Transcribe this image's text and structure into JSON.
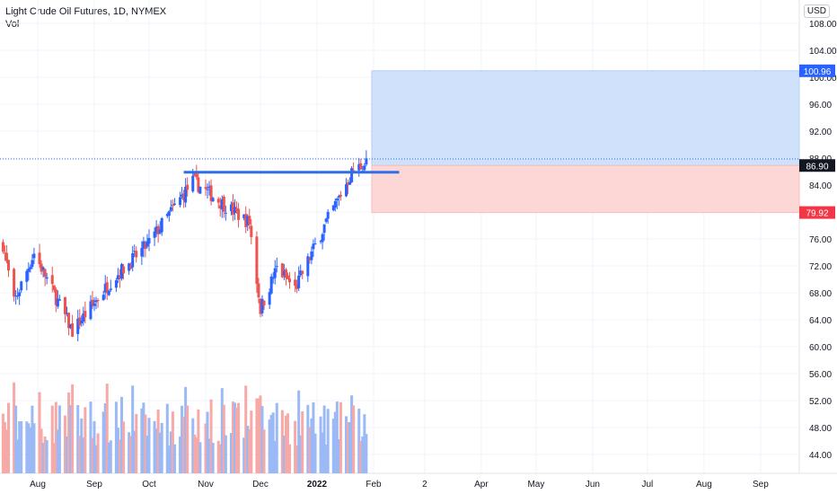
{
  "legend": {
    "title": "Light Crude Oil Futures, 1D, NYMEX",
    "volume_label": "Vol"
  },
  "currency_label": "USD",
  "colors": {
    "up": "#26a69a",
    "up_candle": "#2962ff",
    "down": "#ef5350",
    "vol_up": "#9ab9f5",
    "vol_down": "#f7a9a7",
    "target_zone": "#d0e2fb",
    "stop_zone": "#fdd7d6",
    "level_line": "#2e6ee6",
    "target_tag": "#2962ff",
    "stop_tag": "#f23645",
    "entry_tag": "#131722",
    "grid": "#f0f3fa"
  },
  "chart_data": {
    "type": "candlestick",
    "title": "Light Crude Oil Futures, 1D, NYMEX",
    "ylabel": "USD",
    "ylim": [
      40,
      110
    ],
    "y_ticks": [
      "44.00",
      "48.00",
      "52.00",
      "56.00",
      "60.00",
      "64.00",
      "68.00",
      "72.00",
      "76.00",
      "80.00",
      "84.00",
      "88.00",
      "92.00",
      "96.00",
      "100.00",
      "104.00",
      "108.00"
    ],
    "x_ticks": [
      "Aug",
      "Sep",
      "Oct",
      "Nov",
      "Dec",
      "2022",
      "Feb",
      "2",
      "Apr",
      "May",
      "Jun",
      "Jul",
      "Aug",
      "Sep"
    ],
    "price_path": [
      {
        "date": "2021-07-13",
        "price": 75.2
      },
      {
        "date": "2021-07-19",
        "price": 66.5
      },
      {
        "date": "2021-07-30",
        "price": 73.9
      },
      {
        "date": "2021-08-20",
        "price": 62.3
      },
      {
        "date": "2021-09-10",
        "price": 69.7
      },
      {
        "date": "2021-09-30",
        "price": 75.1
      },
      {
        "date": "2021-10-25",
        "price": 84.6
      },
      {
        "date": "2021-11-10",
        "price": 81.3
      },
      {
        "date": "2021-11-25",
        "price": 78.4
      },
      {
        "date": "2021-12-01",
        "price": 65.6
      },
      {
        "date": "2021-12-10",
        "price": 71.7
      },
      {
        "date": "2021-12-20",
        "price": 68.6
      },
      {
        "date": "2022-01-05",
        "price": 77.9
      },
      {
        "date": "2022-01-20",
        "price": 85.8
      },
      {
        "date": "2022-01-28",
        "price": 87.4
      }
    ],
    "volume_series_name": "Vol",
    "horizontal_level": 85.9,
    "position": {
      "target": 100.96,
      "entry": 86.9,
      "stop": 79.92,
      "target_label": "100.96",
      "entry_label": "86.90",
      "stop_label": "79.92"
    },
    "last_price_marker": "88.00",
    "grid": true
  }
}
